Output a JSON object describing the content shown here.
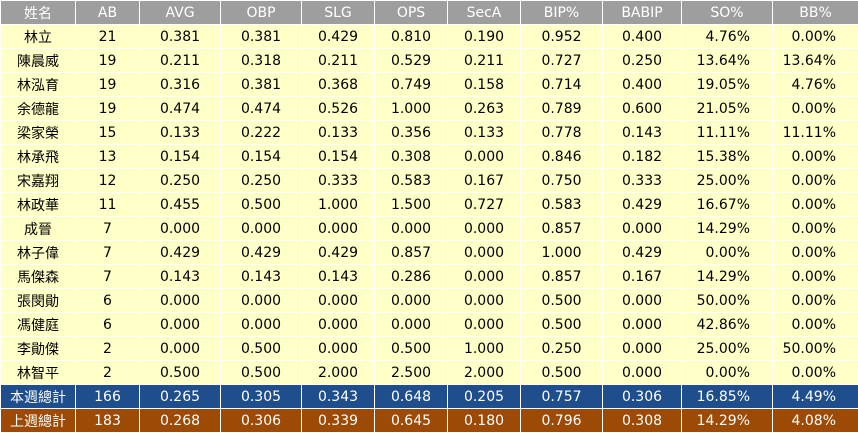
{
  "table": {
    "header": [
      "姓名",
      "AB",
      "AVG",
      "OBP",
      "SLG",
      "OPS",
      "SecA",
      "BIP%",
      "BABIP",
      "SO%",
      "BB%"
    ],
    "rows": [
      [
        "林立",
        "21",
        "0.381",
        "0.381",
        "0.429",
        "0.810",
        "0.190",
        "0.952",
        "0.400",
        "4.76%",
        "0.00%"
      ],
      [
        "陳晨威",
        "19",
        "0.211",
        "0.318",
        "0.211",
        "0.529",
        "0.211",
        "0.727",
        "0.250",
        "13.64%",
        "13.64%"
      ],
      [
        "林泓育",
        "19",
        "0.316",
        "0.381",
        "0.368",
        "0.749",
        "0.158",
        "0.714",
        "0.400",
        "19.05%",
        "4.76%"
      ],
      [
        "余德龍",
        "19",
        "0.474",
        "0.474",
        "0.526",
        "1.000",
        "0.263",
        "0.789",
        "0.600",
        "21.05%",
        "0.00%"
      ],
      [
        "梁家榮",
        "15",
        "0.133",
        "0.222",
        "0.133",
        "0.356",
        "0.133",
        "0.778",
        "0.143",
        "11.11%",
        "11.11%"
      ],
      [
        "林承飛",
        "13",
        "0.154",
        "0.154",
        "0.154",
        "0.308",
        "0.000",
        "0.846",
        "0.182",
        "15.38%",
        "0.00%"
      ],
      [
        "宋嘉翔",
        "12",
        "0.250",
        "0.250",
        "0.333",
        "0.583",
        "0.167",
        "0.750",
        "0.333",
        "25.00%",
        "0.00%"
      ],
      [
        "林政華",
        "11",
        "0.455",
        "0.500",
        "1.000",
        "1.500",
        "0.727",
        "0.583",
        "0.429",
        "16.67%",
        "0.00%"
      ],
      [
        "成晉",
        "7",
        "0.000",
        "0.000",
        "0.000",
        "0.000",
        "0.000",
        "0.857",
        "0.000",
        "14.29%",
        "0.00%"
      ],
      [
        "林子偉",
        "7",
        "0.429",
        "0.429",
        "0.429",
        "0.857",
        "0.000",
        "1.000",
        "0.429",
        "0.00%",
        "0.00%"
      ],
      [
        "馬傑森",
        "7",
        "0.143",
        "0.143",
        "0.143",
        "0.286",
        "0.000",
        "0.857",
        "0.167",
        "14.29%",
        "0.00%"
      ],
      [
        "張閔勛",
        "6",
        "0.000",
        "0.000",
        "0.000",
        "0.000",
        "0.000",
        "0.500",
        "0.000",
        "50.00%",
        "0.00%"
      ],
      [
        "馮健庭",
        "6",
        "0.000",
        "0.000",
        "0.000",
        "0.000",
        "0.000",
        "0.500",
        "0.000",
        "42.86%",
        "0.00%"
      ],
      [
        "李勛傑",
        "2",
        "0.000",
        "0.500",
        "0.000",
        "0.500",
        "1.000",
        "0.250",
        "0.000",
        "25.00%",
        "50.00%"
      ],
      [
        "林智平",
        "2",
        "0.500",
        "0.500",
        "2.000",
        "2.500",
        "2.000",
        "0.500",
        "0.000",
        "0.00%",
        "0.00%"
      ]
    ],
    "totals": [
      [
        "本週總計",
        "166",
        "0.265",
        "0.305",
        "0.343",
        "0.648",
        "0.205",
        "0.757",
        "0.306",
        "16.85%",
        "4.49%"
      ],
      [
        "上週總計",
        "183",
        "0.268",
        "0.306",
        "0.339",
        "0.645",
        "0.180",
        "0.796",
        "0.308",
        "14.29%",
        "4.08%"
      ]
    ]
  }
}
